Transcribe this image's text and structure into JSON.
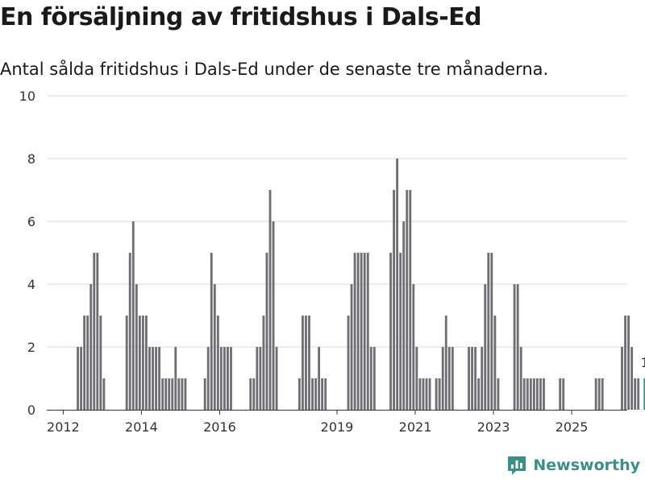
{
  "title": "En försäljning av fritidshus i Dals-Ed",
  "subtitle": "Antal sålda fritidshus i Dals-Ed under de senaste tre månaderna.",
  "brand": {
    "name": "Newsworthy"
  },
  "colors": {
    "bar": "#6e6e73",
    "highlight": "#25958a",
    "grid": "#d9d9d9",
    "text": "#333333",
    "brand": "#3a8f87"
  },
  "chart_data": {
    "type": "bar",
    "title": "En försäljning av fritidshus i Dals-Ed",
    "xlabel": "",
    "ylabel": "",
    "ylim": [
      0,
      10
    ],
    "yticks": [
      0,
      2,
      4,
      6,
      8,
      10
    ],
    "xticks": [
      {
        "label": "2012",
        "x": 2012.0
      },
      {
        "label": "2014",
        "x": 2014.0
      },
      {
        "label": "2016",
        "x": 2016.0
      },
      {
        "label": "2019",
        "x": 2019.0
      },
      {
        "label": "2021",
        "x": 2021.0
      },
      {
        "label": "2023",
        "x": 2023.0
      },
      {
        "label": "2025",
        "x": 2025.0
      }
    ],
    "x_range": [
      2011.58,
      2026.42
    ],
    "period_length": 0.0833,
    "start": 2011.5,
    "values": [
      0,
      0,
      0,
      0,
      0,
      0,
      0,
      0,
      0,
      0,
      2,
      2,
      3,
      3,
      4,
      5,
      5,
      3,
      1,
      0,
      0,
      0,
      0,
      0,
      0,
      3,
      5,
      6,
      4,
      3,
      3,
      3,
      2,
      2,
      2,
      2,
      1,
      1,
      1,
      1,
      2,
      1,
      1,
      1,
      0,
      0,
      0,
      0,
      0,
      1,
      2,
      5,
      4,
      3,
      2,
      2,
      2,
      2,
      0,
      0,
      0,
      0,
      0,
      1,
      1,
      2,
      2,
      3,
      5,
      7,
      6,
      2,
      0,
      0,
      0,
      0,
      0,
      0,
      1,
      3,
      3,
      3,
      1,
      1,
      2,
      1,
      1,
      0,
      0,
      0,
      0,
      0,
      0,
      3,
      4,
      5,
      5,
      5,
      5,
      5,
      2,
      2,
      0,
      0,
      0,
      0,
      5,
      7,
      8,
      5,
      6,
      7,
      7,
      4,
      2,
      1,
      1,
      1,
      1,
      0,
      1,
      1,
      2,
      3,
      2,
      2,
      0,
      0,
      0,
      0,
      2,
      2,
      2,
      1,
      2,
      4,
      5,
      5,
      3,
      1,
      0,
      0,
      0,
      0,
      4,
      4,
      2,
      1,
      1,
      1,
      1,
      1,
      1,
      1,
      0,
      0,
      0,
      0,
      1,
      1,
      0,
      0,
      0,
      0,
      0,
      0,
      0,
      0,
      0,
      1,
      1,
      1,
      0,
      0,
      0,
      0,
      0,
      2,
      3,
      3,
      2,
      1,
      1,
      0,
      1
    ],
    "highlight_last": true,
    "annotations": [
      {
        "label": "1",
        "target": "last"
      }
    ]
  }
}
